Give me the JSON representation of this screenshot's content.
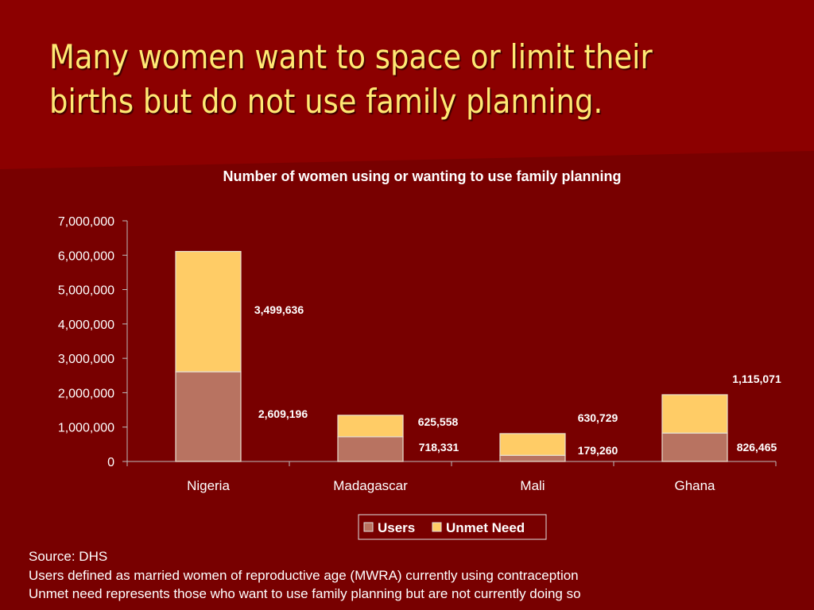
{
  "slide": {
    "title_line1": "Many women want to space or limit their",
    "title_line2": "births but do not use family planning."
  },
  "colors": {
    "background": "#7a0000",
    "background_top": "#8e0000",
    "title": "#ffe873",
    "users": "#b87361",
    "unmet_need": "#ffcc66",
    "text": "#ffffff"
  },
  "chart_data": {
    "type": "bar",
    "stacked": true,
    "title": "Number of women using or wanting to use family planning",
    "categories": [
      "Nigeria",
      "Madagascar",
      "Mali",
      "Ghana"
    ],
    "series": [
      {
        "name": "Users",
        "values": [
          2609196,
          718331,
          179260,
          826465
        ],
        "labels": [
          "2,609,196",
          "718,331",
          "179,260",
          "826,465"
        ],
        "color": "#b87361"
      },
      {
        "name": "Unmet Need",
        "values": [
          3499636,
          625558,
          630729,
          1115071
        ],
        "labels": [
          "3,499,636",
          "625,558",
          "630,729",
          "1,115,071"
        ],
        "color": "#ffcc66"
      }
    ],
    "ylim": [
      0,
      7000000
    ],
    "yticks": [
      0,
      1000000,
      2000000,
      3000000,
      4000000,
      5000000,
      6000000,
      7000000
    ],
    "ytick_labels": [
      "0",
      "1,000,000",
      "2,000,000",
      "3,000,000",
      "4,000,000",
      "5,000,000",
      "6,000,000",
      "7,000,000"
    ],
    "grid": false,
    "legend": "bottom"
  },
  "notes": {
    "line1": "Source: DHS",
    "line2": "Users defined as married women of reproductive age (MWRA) currently using contraception",
    "line3": "Unmet need represents those who want to use family planning but are not currently doing so"
  }
}
